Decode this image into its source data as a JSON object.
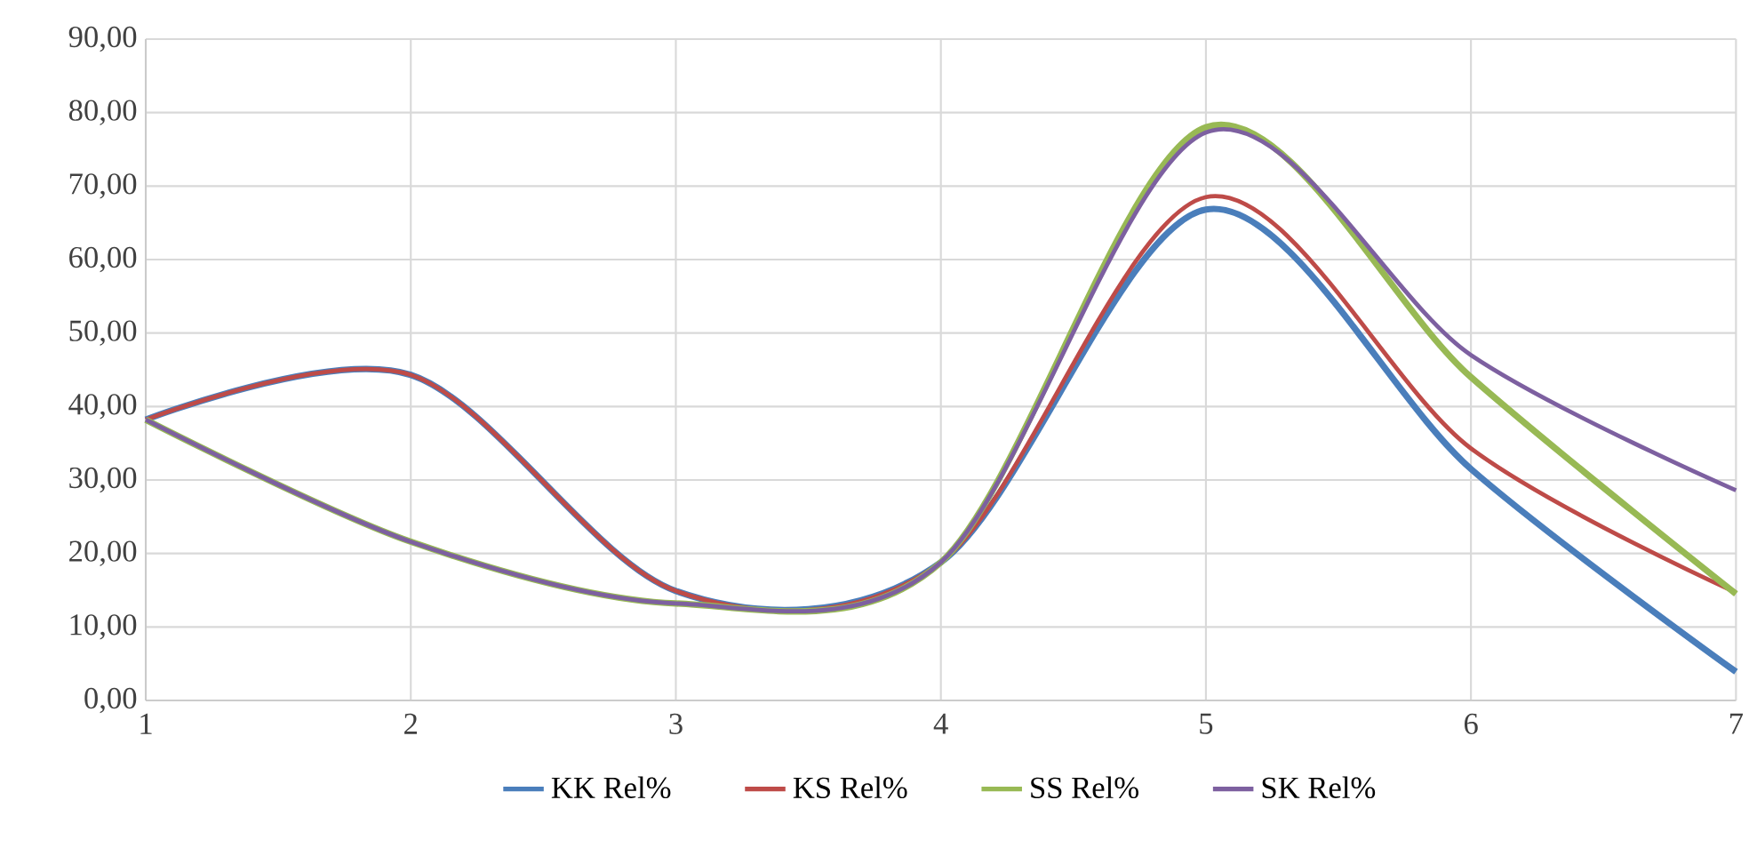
{
  "chart_data": {
    "type": "line",
    "x": [
      1,
      2,
      3,
      4,
      5,
      6,
      7
    ],
    "series": [
      {
        "name": "KK Rel%",
        "color": "#4a7ebb",
        "values": [
          38.2,
          44.3,
          14.9,
          18.8,
          66.8,
          31.5,
          3.9
        ]
      },
      {
        "name": "KS Rel%",
        "color": "#be4b48",
        "values": [
          38.2,
          44.3,
          14.9,
          18.8,
          68.5,
          34.3,
          14.7
        ]
      },
      {
        "name": "SS Rel%",
        "color": "#98b954",
        "values": [
          38.2,
          21.6,
          13.2,
          18.8,
          78.0,
          44.0,
          14.5
        ]
      },
      {
        "name": "SK Rel%",
        "color": "#7d60a0",
        "values": [
          38.2,
          21.6,
          13.2,
          18.8,
          77.3,
          47.0,
          28.6
        ]
      }
    ],
    "xlim": [
      1,
      7
    ],
    "xticks": [
      1,
      2,
      3,
      4,
      5,
      6,
      7
    ],
    "ylim": [
      0,
      90
    ],
    "yticks": [
      {
        "value": 0,
        "label": "0,00"
      },
      {
        "value": 10,
        "label": "10,00"
      },
      {
        "value": 20,
        "label": "20,00"
      },
      {
        "value": 30,
        "label": "30,00"
      },
      {
        "value": 40,
        "label": "40,00"
      },
      {
        "value": 50,
        "label": "50,00"
      },
      {
        "value": 60,
        "label": "60,00"
      },
      {
        "value": 70,
        "label": "70,00"
      },
      {
        "value": 80,
        "label": "80,00"
      },
      {
        "value": 90,
        "label": "90,00"
      }
    ],
    "grid": true,
    "legend": "bottom",
    "line_style": "solid"
  }
}
